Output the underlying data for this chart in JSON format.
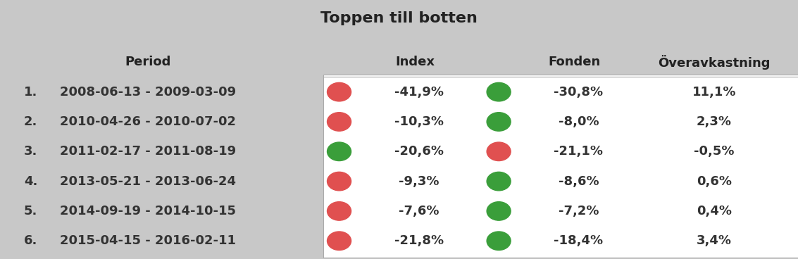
{
  "title": "Toppen till botten",
  "headers": [
    "Period",
    "Index",
    "Fonden",
    "Överavkastning"
  ],
  "rows": [
    {
      "num": "1.",
      "period": "2008-06-13 - 2009-03-09",
      "index_dot": "red",
      "index_val": "-41,9%",
      "fond_dot": "green",
      "fond_val": "-30,8%",
      "over": "11,1%"
    },
    {
      "num": "2.",
      "period": "2010-04-26 - 2010-07-02",
      "index_dot": "red",
      "index_val": "-10,3%",
      "fond_dot": "green",
      "fond_val": "-8,0%",
      "over": "2,3%"
    },
    {
      "num": "3.",
      "period": "2011-02-17 - 2011-08-19",
      "index_dot": "green",
      "index_val": "-20,6%",
      "fond_dot": "red",
      "fond_val": "-21,1%",
      "over": "-0,5%"
    },
    {
      "num": "4.",
      "period": "2013-05-21 - 2013-06-24",
      "index_dot": "red",
      "index_val": "-9,3%",
      "fond_dot": "green",
      "fond_val": "-8,6%",
      "over": "0,6%"
    },
    {
      "num": "5.",
      "period": "2014-09-19 - 2014-10-15",
      "index_dot": "red",
      "index_val": "-7,6%",
      "fond_dot": "green",
      "fond_val": "-7,2%",
      "over": "0,4%"
    },
    {
      "num": "6.",
      "period": "2015-04-15 - 2016-02-11",
      "index_dot": "red",
      "index_val": "-21,8%",
      "fond_dot": "green",
      "fond_val": "-18,4%",
      "over": "3,4%"
    }
  ],
  "bg_color": "#c8c8c8",
  "data_bg": "#ffffff",
  "dot_red": "#e05050",
  "dot_green": "#3a9e3a",
  "title_fontsize": 16,
  "header_fontsize": 13,
  "data_fontsize": 13
}
